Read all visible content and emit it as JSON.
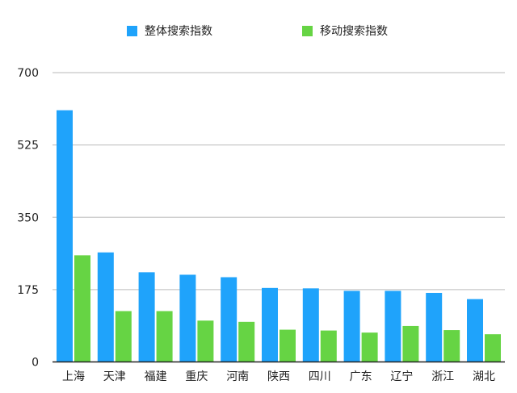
{
  "chart_data": {
    "type": "bar",
    "title": "",
    "xlabel": "",
    "ylabel": "",
    "ylim": [
      0,
      700
    ],
    "yticks": [
      "0",
      "175",
      "350",
      "525",
      "700"
    ],
    "grid": true,
    "legend_position": "top",
    "categories": [
      "上海",
      "天津",
      "福建",
      "重庆",
      "河南",
      "陕西",
      "四川",
      "广东",
      "辽宁",
      "浙江",
      "湖北"
    ],
    "series": [
      {
        "name": "整体搜索指数",
        "color": "#1fa3fb",
        "values": [
          609,
          265,
          217,
          211,
          205,
          179,
          178,
          172,
          172,
          167,
          152
        ]
      },
      {
        "name": "移动搜索指数",
        "color": "#66d444",
        "values": [
          258,
          123,
          123,
          100,
          97,
          78,
          76,
          71,
          87,
          77,
          67
        ]
      }
    ]
  }
}
